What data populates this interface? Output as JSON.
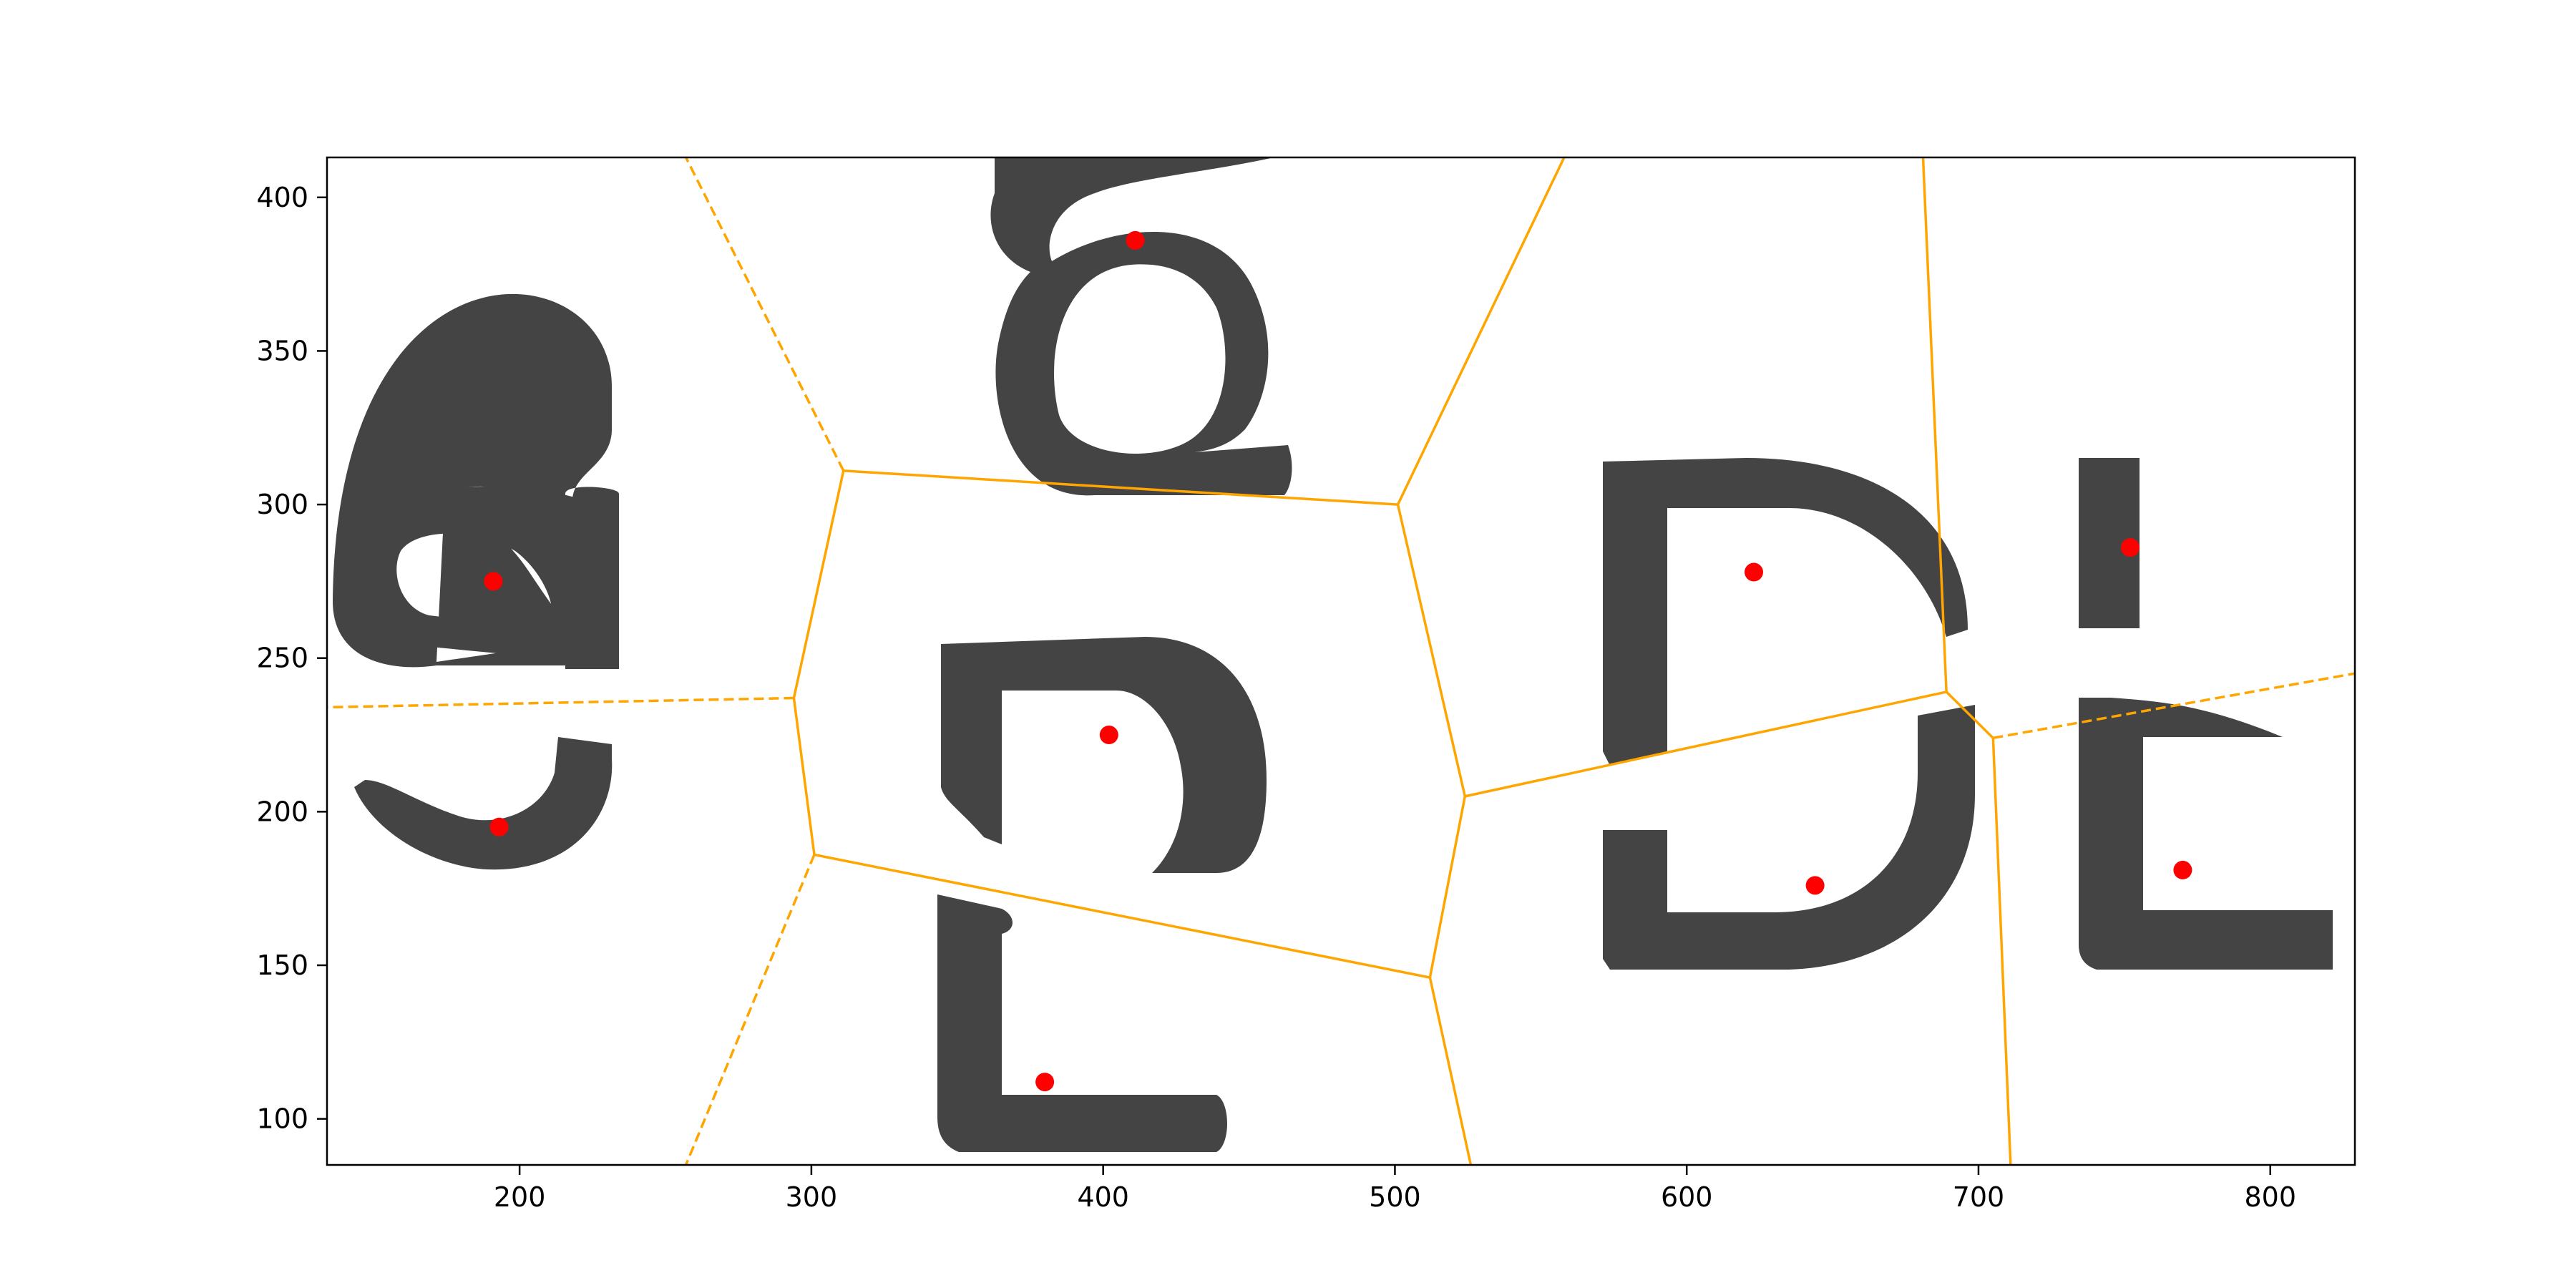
{
  "chart_data": {
    "type": "scatter",
    "title": "",
    "xlabel": "",
    "ylabel": "",
    "xlim": [
      134,
      829
    ],
    "ylim": [
      85,
      413
    ],
    "grid": false,
    "x_ticks": [
      200,
      300,
      400,
      500,
      600,
      700,
      800
    ],
    "y_ticks": [
      100,
      150,
      200,
      250,
      300,
      350,
      400
    ],
    "series": [
      {
        "values": [
          {
            "x": 191,
            "y": 275
          },
          {
            "x": 193,
            "y": 195
          },
          {
            "x": 411,
            "y": 386
          },
          {
            "x": 402,
            "y": 225
          },
          {
            "x": 380,
            "y": 112
          },
          {
            "x": 623,
            "y": 278
          },
          {
            "x": 644,
            "y": 176
          },
          {
            "x": 752,
            "y": 286
          },
          {
            "x": 770,
            "y": 181
          }
        ]
      }
    ],
    "voronoi_vertices": [
      {
        "x": 311,
        "y": 311
      },
      {
        "x": 501,
        "y": 300
      },
      {
        "x": 524,
        "y": 205
      },
      {
        "x": 512,
        "y": 146
      },
      {
        "x": 301,
        "y": 186
      },
      {
        "x": 294,
        "y": 237
      },
      {
        "x": 689,
        "y": 239
      },
      {
        "x": 705,
        "y": 224
      }
    ],
    "voronoi_finite_edges": [
      [
        0,
        1
      ],
      [
        1,
        2
      ],
      [
        2,
        3
      ],
      [
        3,
        4
      ],
      [
        4,
        5
      ],
      [
        5,
        0
      ],
      [
        2,
        6
      ],
      [
        6,
        7
      ]
    ],
    "voronoi_infinite_edges": [
      {
        "from": 0,
        "to": {
          "x": 257,
          "y": 413
        },
        "style": "dashed"
      },
      {
        "from": 5,
        "to": {
          "x": 134,
          "y": 234
        },
        "style": "dashed"
      },
      {
        "from": 4,
        "to": {
          "x": 257,
          "y": 85
        },
        "style": "dashed"
      },
      {
        "from": 7,
        "to": {
          "x": 829,
          "y": 245
        },
        "style": "dashed"
      },
      {
        "from": 1,
        "to": {
          "x": 558,
          "y": 413
        },
        "style": "solid"
      },
      {
        "from": 6,
        "to": {
          "x": 681,
          "y": 413
        },
        "style": "solid"
      },
      {
        "from": 3,
        "to": {
          "x": 526,
          "y": 85
        },
        "style": "solid"
      },
      {
        "from": 7,
        "to": {
          "x": 711,
          "y": 85
        },
        "style": "solid"
      }
    ],
    "colors": {
      "points": "#ff0000",
      "edges": "#ffa500",
      "glyphs": "#444444",
      "frame": "#000000"
    }
  }
}
